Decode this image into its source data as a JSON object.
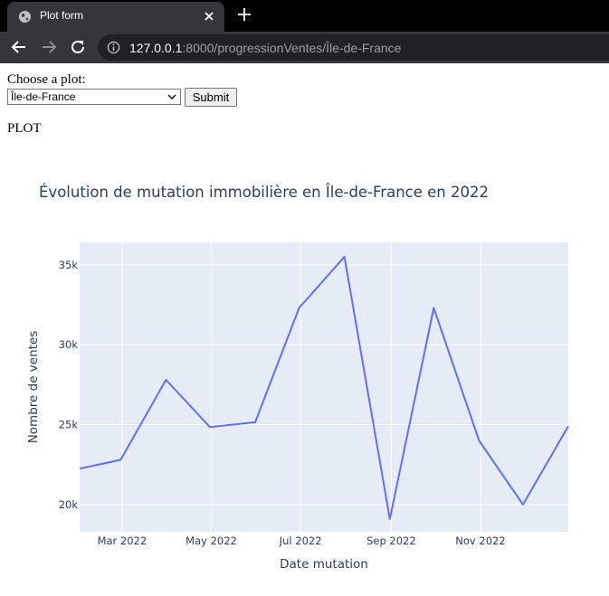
{
  "browser": {
    "tab_title": "Plot form",
    "url_host": "127.0.0.1",
    "url_rest": ":8000/progressionVentes/Île-de-France"
  },
  "form": {
    "label": "Choose a plot:",
    "selected_option": "Île-de-France",
    "submit_label": "Submit",
    "heading": "PLOT"
  },
  "chart_data": {
    "type": "line",
    "title": "Évolution de mutation immobilière en Île-de-France en 2022",
    "xlabel": "Date mutation",
    "ylabel": "Nombre de ventes",
    "x": [
      "2022-01-31",
      "2022-02-28",
      "2022-03-31",
      "2022-04-30",
      "2022-05-31",
      "2022-06-30",
      "2022-07-31",
      "2022-08-31",
      "2022-09-30",
      "2022-10-31",
      "2022-11-30",
      "2022-12-31"
    ],
    "series": [
      {
        "values": [
          22250,
          22800,
          27800,
          24850,
          25150,
          32300,
          35500,
          19100,
          32300,
          24000,
          20000,
          24900
        ],
        "color": "#636efa"
      }
    ],
    "x_range": [
      "2022-01-31",
      "2022-12-31"
    ],
    "ylim": [
      18300,
      36400
    ],
    "x_ticks": [
      {
        "date": "2022-03-01",
        "label": "Mar 2022"
      },
      {
        "date": "2022-05-01",
        "label": "May 2022"
      },
      {
        "date": "2022-07-01",
        "label": "Jul 2022"
      },
      {
        "date": "2022-09-01",
        "label": "Sep 2022"
      },
      {
        "date": "2022-11-01",
        "label": "Nov 2022"
      }
    ],
    "y_ticks": [
      {
        "value": 20000,
        "label": "20k"
      },
      {
        "value": 25000,
        "label": "25k"
      },
      {
        "value": 30000,
        "label": "30k"
      },
      {
        "value": 35000,
        "label": "35k"
      }
    ],
    "grid": true,
    "plot_bg": "#e5ecf6"
  }
}
